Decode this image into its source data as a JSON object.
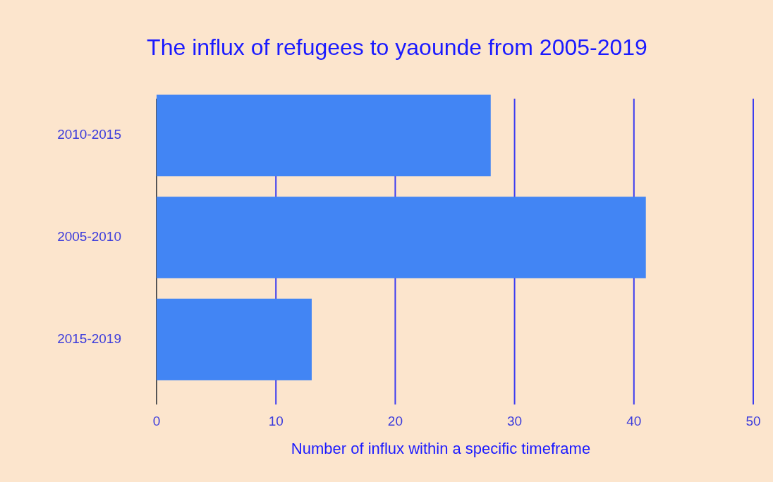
{
  "chart_data": {
    "type": "bar",
    "orientation": "horizontal",
    "title": "The influx of refugees to yaounde from 2005-2019",
    "xlabel": "Number of influx within a specific timeframe",
    "categories": [
      "2010-2015",
      "2005-2010",
      "2015-2019"
    ],
    "values": [
      28,
      41,
      13
    ],
    "color": "#4285f4",
    "xlim": [
      0,
      50
    ],
    "xticks": [
      0,
      10,
      20,
      30,
      40,
      50
    ],
    "grid": "x"
  }
}
